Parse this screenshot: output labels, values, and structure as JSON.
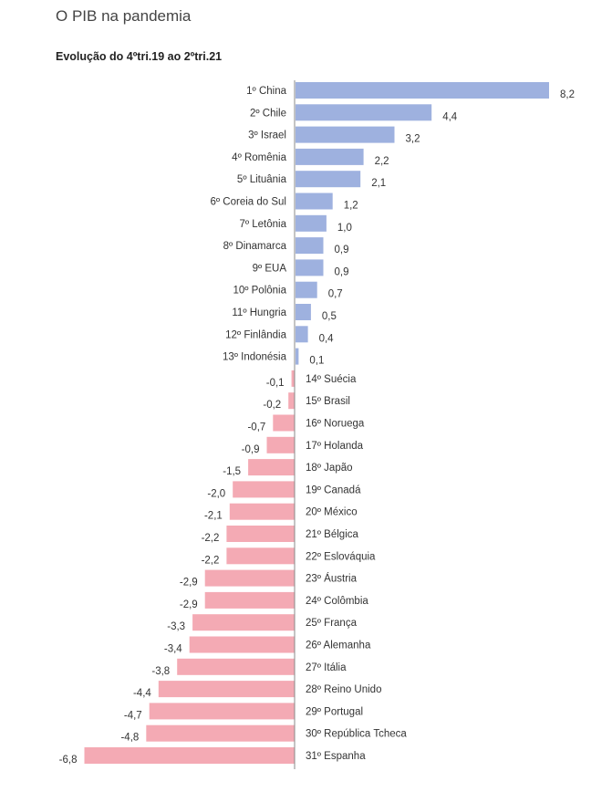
{
  "title": "O PIB na pandemia",
  "subtitle": "Evolução do 4ºtri.19 ao 2ºtri.21",
  "colors": {
    "positive": "#9eb1df",
    "negative": "#f4aab4",
    "axis": "#888888",
    "text": "#333333"
  },
  "chart_data": {
    "type": "bar",
    "orientation": "horizontal",
    "title": "O PIB na pandemia",
    "subtitle": "Evolução do 4ºtri.19 ao 2ºtri.21",
    "categories": [
      "1º China",
      "2º Chile",
      "3º Israel",
      "4º Romênia",
      "5º Lituânia",
      "6º Coreia do Sul",
      "7º Letônia",
      "8º Dinamarca",
      "9º EUA",
      "10º Polônia",
      "11º Hungria",
      "12º Finlândia",
      "13º Indonésia",
      "14º Suécia",
      "15º Brasil",
      "16º Noruega",
      "17º Holanda",
      "18º Japão",
      "19º Canadá",
      "20º México",
      "21º Bélgica",
      "22º Eslováquia",
      "23º Áustria",
      "24º Colômbia",
      "25º França",
      "26º Alemanha",
      "27º Itália",
      "28º Reino Unido",
      "29º Portugal",
      "30º República Tcheca",
      "31º Espanha"
    ],
    "values": [
      8.2,
      4.4,
      3.2,
      2.2,
      2.1,
      1.2,
      1.0,
      0.9,
      0.9,
      0.7,
      0.5,
      0.4,
      0.1,
      -0.1,
      -0.2,
      -0.7,
      -0.9,
      -1.5,
      -2.0,
      -2.1,
      -2.2,
      -2.2,
      -2.9,
      -2.9,
      -3.3,
      -3.4,
      -3.8,
      -4.4,
      -4.7,
      -4.8,
      -6.8
    ],
    "value_labels": [
      "8,2",
      "4,4",
      "3,2",
      "2,2",
      "2,1",
      "1,2",
      "1,0",
      "0,9",
      "0,9",
      "0,7",
      "0,5",
      "0,4",
      "0,1",
      "-0,1",
      "-0,2",
      "-0,7",
      "-0,9",
      "-1,5",
      "-2,0",
      "-2,1",
      "-2,2",
      "-2,2",
      "-2,9",
      "-2,9",
      "-3,3",
      "-3,4",
      "-3,8",
      "-4,4",
      "-4,7",
      "-4,8",
      "-6,8"
    ],
    "xlim": [
      -6.8,
      8.2
    ],
    "grid": false,
    "legend": "none"
  }
}
